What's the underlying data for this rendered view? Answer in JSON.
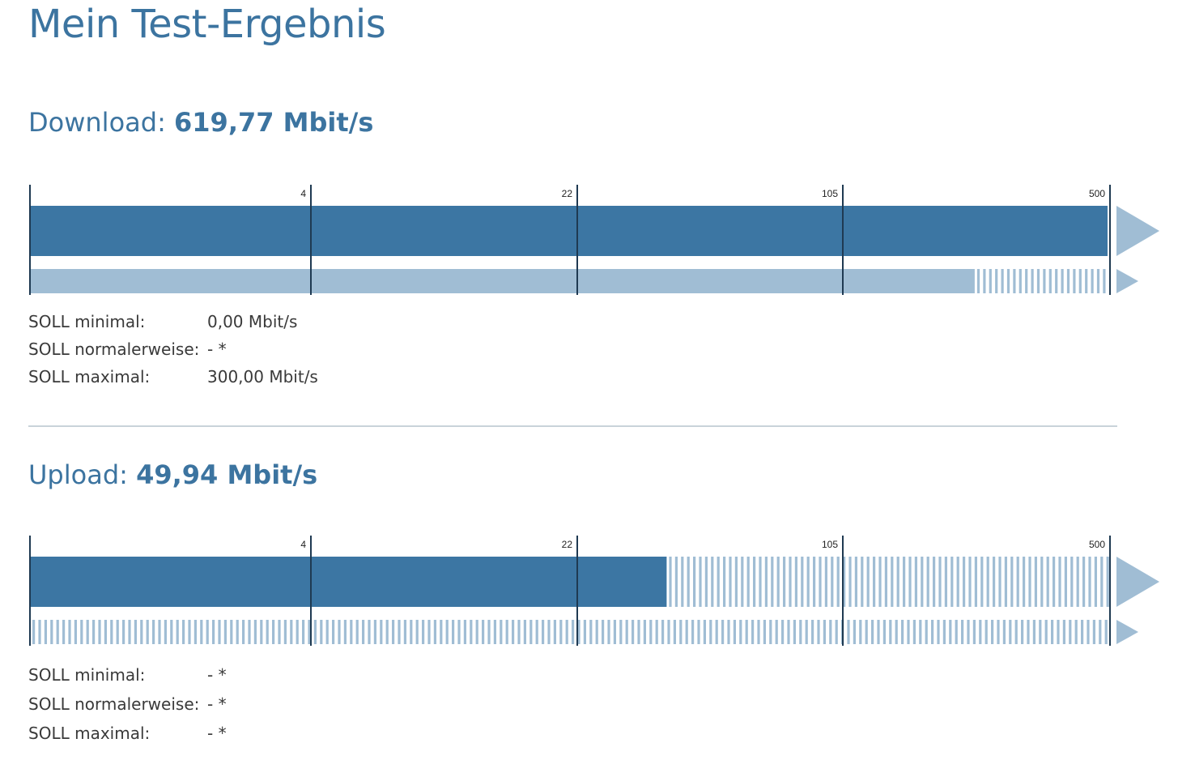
{
  "page": {
    "title": "Mein Test-Ergebnis"
  },
  "scale": {
    "ticks": [
      "4",
      "22",
      "105",
      "500"
    ],
    "tick_values": [
      0,
      4,
      22,
      105,
      500
    ]
  },
  "colors": {
    "measured": "#3c76a3",
    "reference": "#a0bdd4",
    "tick": "#1f3a52"
  },
  "download": {
    "label": "Download:",
    "value_text": "619,77 Mbit/s",
    "measured_mbit": 619.77,
    "reference_solid_mbit": 300,
    "soll": [
      {
        "label": "SOLL minimal:",
        "value": "0,00 Mbit/s"
      },
      {
        "label": "SOLL normalerweise:",
        "value": "- *"
      },
      {
        "label": "SOLL maximal:",
        "value": "300,00 Mbit/s"
      }
    ]
  },
  "upload": {
    "label": "Upload:",
    "value_text": "49,94 Mbit/s",
    "measured_mbit": 49.94,
    "reference_solid_mbit": null,
    "soll": [
      {
        "label": "SOLL minimal:",
        "value": "- *"
      },
      {
        "label": "SOLL normalerweise:",
        "value": "- *"
      },
      {
        "label": "SOLL maximal:",
        "value": "- *"
      }
    ]
  }
}
